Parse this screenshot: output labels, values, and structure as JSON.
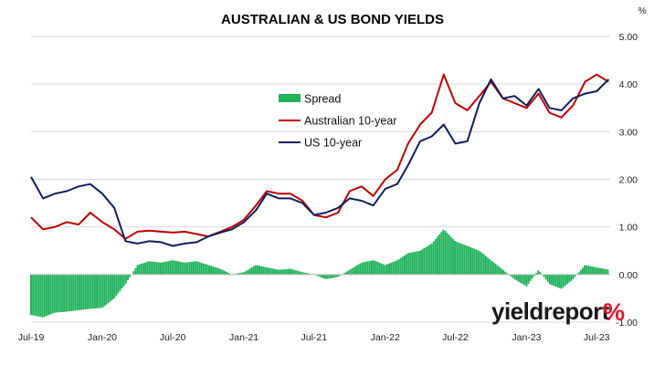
{
  "chart_data": {
    "type": "bar+line",
    "title": "AUSTRALIAN & US BOND YIELDS",
    "y_unit_label": "%",
    "ylim": [
      -1.0,
      5.0
    ],
    "y_ticks": [
      "5.00",
      "4.00",
      "3.00",
      "2.00",
      "1.00",
      "0.00",
      "-1.00"
    ],
    "y_tick_values": [
      5,
      4,
      3,
      2,
      1,
      0,
      -1
    ],
    "x_range": [
      "2019-07-01",
      "2023-08-05"
    ],
    "x_ticks": [
      {
        "label": "Jul-19",
        "date": "2019-07-01"
      },
      {
        "label": "Jan-20",
        "date": "2020-01-01"
      },
      {
        "label": "Jul-20",
        "date": "2020-07-01"
      },
      {
        "label": "Jan-21",
        "date": "2021-01-01"
      },
      {
        "label": "Jul-21",
        "date": "2021-07-01"
      },
      {
        "label": "Jan-22",
        "date": "2022-01-01"
      },
      {
        "label": "Jul-22",
        "date": "2022-07-01"
      },
      {
        "label": "Jan-23",
        "date": "2023-01-01"
      },
      {
        "label": "Jul-23",
        "date": "2023-07-01"
      }
    ],
    "grid": "horizontal",
    "legend_position": "upper-center",
    "series": [
      {
        "name": "Spread",
        "kind": "bar",
        "color": "#1fb25a",
        "points": [
          [
            "2019-07-01",
            -0.85
          ],
          [
            "2019-08-01",
            -0.9
          ],
          [
            "2019-09-01",
            -0.8
          ],
          [
            "2019-10-01",
            -0.78
          ],
          [
            "2019-11-01",
            -0.75
          ],
          [
            "2019-12-01",
            -0.72
          ],
          [
            "2020-01-01",
            -0.7
          ],
          [
            "2020-02-01",
            -0.5
          ],
          [
            "2020-03-01",
            -0.2
          ],
          [
            "2020-04-01",
            0.2
          ],
          [
            "2020-05-01",
            0.28
          ],
          [
            "2020-06-01",
            0.25
          ],
          [
            "2020-07-01",
            0.3
          ],
          [
            "2020-08-01",
            0.25
          ],
          [
            "2020-09-01",
            0.28
          ],
          [
            "2020-10-01",
            0.2
          ],
          [
            "2020-11-01",
            0.12
          ],
          [
            "2020-12-01",
            0.0
          ],
          [
            "2021-01-01",
            0.05
          ],
          [
            "2021-02-01",
            0.2
          ],
          [
            "2021-03-01",
            0.15
          ],
          [
            "2021-04-01",
            0.1
          ],
          [
            "2021-05-01",
            0.12
          ],
          [
            "2021-06-01",
            0.05
          ],
          [
            "2021-07-01",
            0.0
          ],
          [
            "2021-08-01",
            -0.1
          ],
          [
            "2021-09-01",
            -0.05
          ],
          [
            "2021-10-01",
            0.1
          ],
          [
            "2021-11-01",
            0.25
          ],
          [
            "2021-12-01",
            0.3
          ],
          [
            "2022-01-01",
            0.2
          ],
          [
            "2022-02-01",
            0.3
          ],
          [
            "2022-03-01",
            0.45
          ],
          [
            "2022-04-01",
            0.5
          ],
          [
            "2022-05-01",
            0.65
          ],
          [
            "2022-06-01",
            0.95
          ],
          [
            "2022-07-01",
            0.7
          ],
          [
            "2022-08-01",
            0.6
          ],
          [
            "2022-09-01",
            0.5
          ],
          [
            "2022-10-01",
            0.3
          ],
          [
            "2022-11-01",
            0.1
          ],
          [
            "2022-12-01",
            -0.1
          ],
          [
            "2023-01-01",
            -0.25
          ],
          [
            "2023-02-01",
            0.1
          ],
          [
            "2023-03-01",
            -0.2
          ],
          [
            "2023-04-01",
            -0.3
          ],
          [
            "2023-05-01",
            -0.1
          ],
          [
            "2023-06-01",
            0.2
          ],
          [
            "2023-07-01",
            0.15
          ],
          [
            "2023-08-01",
            0.1
          ]
        ]
      },
      {
        "name": "Australian 10-year",
        "kind": "line",
        "color": "#c00000",
        "points": [
          [
            "2019-07-01",
            1.2
          ],
          [
            "2019-08-01",
            0.95
          ],
          [
            "2019-09-01",
            1.0
          ],
          [
            "2019-10-01",
            1.1
          ],
          [
            "2019-11-01",
            1.05
          ],
          [
            "2019-12-01",
            1.3
          ],
          [
            "2020-01-01",
            1.1
          ],
          [
            "2020-02-01",
            0.95
          ],
          [
            "2020-03-01",
            0.75
          ],
          [
            "2020-04-01",
            0.9
          ],
          [
            "2020-05-01",
            0.92
          ],
          [
            "2020-06-01",
            0.9
          ],
          [
            "2020-07-01",
            0.88
          ],
          [
            "2020-08-01",
            0.9
          ],
          [
            "2020-09-01",
            0.85
          ],
          [
            "2020-10-01",
            0.8
          ],
          [
            "2020-11-01",
            0.9
          ],
          [
            "2020-12-01",
            1.0
          ],
          [
            "2021-01-01",
            1.15
          ],
          [
            "2021-02-01",
            1.45
          ],
          [
            "2021-03-01",
            1.75
          ],
          [
            "2021-04-01",
            1.7
          ],
          [
            "2021-05-01",
            1.7
          ],
          [
            "2021-06-01",
            1.55
          ],
          [
            "2021-07-01",
            1.25
          ],
          [
            "2021-08-01",
            1.2
          ],
          [
            "2021-09-01",
            1.3
          ],
          [
            "2021-10-01",
            1.75
          ],
          [
            "2021-11-01",
            1.85
          ],
          [
            "2021-12-01",
            1.65
          ],
          [
            "2022-01-01",
            2.0
          ],
          [
            "2022-02-01",
            2.2
          ],
          [
            "2022-03-01",
            2.75
          ],
          [
            "2022-04-01",
            3.15
          ],
          [
            "2022-05-01",
            3.4
          ],
          [
            "2022-06-01",
            4.2
          ],
          [
            "2022-07-01",
            3.6
          ],
          [
            "2022-08-01",
            3.45
          ],
          [
            "2022-09-01",
            3.75
          ],
          [
            "2022-10-01",
            4.05
          ],
          [
            "2022-11-01",
            3.7
          ],
          [
            "2022-12-01",
            3.6
          ],
          [
            "2023-01-01",
            3.5
          ],
          [
            "2023-02-01",
            3.8
          ],
          [
            "2023-03-01",
            3.4
          ],
          [
            "2023-04-01",
            3.3
          ],
          [
            "2023-05-01",
            3.55
          ],
          [
            "2023-06-01",
            4.05
          ],
          [
            "2023-07-01",
            4.2
          ],
          [
            "2023-08-01",
            4.05
          ]
        ]
      },
      {
        "name": "US 10-year",
        "kind": "line",
        "color": "#0d1f5c",
        "points": [
          [
            "2019-07-01",
            2.05
          ],
          [
            "2019-08-01",
            1.6
          ],
          [
            "2019-09-01",
            1.7
          ],
          [
            "2019-10-01",
            1.75
          ],
          [
            "2019-11-01",
            1.85
          ],
          [
            "2019-12-01",
            1.9
          ],
          [
            "2020-01-01",
            1.7
          ],
          [
            "2020-02-01",
            1.4
          ],
          [
            "2020-03-01",
            0.7
          ],
          [
            "2020-04-01",
            0.65
          ],
          [
            "2020-05-01",
            0.7
          ],
          [
            "2020-06-01",
            0.68
          ],
          [
            "2020-07-01",
            0.6
          ],
          [
            "2020-08-01",
            0.65
          ],
          [
            "2020-09-01",
            0.68
          ],
          [
            "2020-10-01",
            0.8
          ],
          [
            "2020-11-01",
            0.88
          ],
          [
            "2020-12-01",
            0.95
          ],
          [
            "2021-01-01",
            1.1
          ],
          [
            "2021-02-01",
            1.35
          ],
          [
            "2021-03-01",
            1.7
          ],
          [
            "2021-04-01",
            1.6
          ],
          [
            "2021-05-01",
            1.6
          ],
          [
            "2021-06-01",
            1.5
          ],
          [
            "2021-07-01",
            1.25
          ],
          [
            "2021-08-01",
            1.3
          ],
          [
            "2021-09-01",
            1.4
          ],
          [
            "2021-10-01",
            1.6
          ],
          [
            "2021-11-01",
            1.55
          ],
          [
            "2021-12-01",
            1.45
          ],
          [
            "2022-01-01",
            1.8
          ],
          [
            "2022-02-01",
            1.9
          ],
          [
            "2022-03-01",
            2.3
          ],
          [
            "2022-04-01",
            2.8
          ],
          [
            "2022-05-01",
            2.9
          ],
          [
            "2022-06-01",
            3.15
          ],
          [
            "2022-07-01",
            2.75
          ],
          [
            "2022-08-01",
            2.8
          ],
          [
            "2022-09-01",
            3.6
          ],
          [
            "2022-10-01",
            4.1
          ],
          [
            "2022-11-01",
            3.7
          ],
          [
            "2022-12-01",
            3.75
          ],
          [
            "2023-01-01",
            3.55
          ],
          [
            "2023-02-01",
            3.9
          ],
          [
            "2023-03-01",
            3.5
          ],
          [
            "2023-04-01",
            3.45
          ],
          [
            "2023-05-01",
            3.7
          ],
          [
            "2023-06-01",
            3.8
          ],
          [
            "2023-07-01",
            3.85
          ],
          [
            "2023-08-01",
            4.1
          ]
        ]
      }
    ]
  },
  "branding": {
    "text": "yieldreport",
    "symbol": "%",
    "text_color": "#1a1a1a",
    "symbol_color": "#e8162b"
  }
}
